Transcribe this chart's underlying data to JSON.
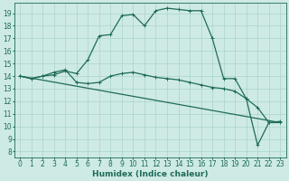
{
  "bg_color": "#ceeae4",
  "grid_color": "#aad4cc",
  "line_color": "#1e6b5a",
  "xlabel": "Humidex (Indice chaleur)",
  "ylabel_ticks": [
    8,
    9,
    10,
    11,
    12,
    13,
    14,
    15,
    16,
    17,
    18,
    19
  ],
  "xticks": [
    0,
    1,
    2,
    3,
    4,
    5,
    6,
    7,
    8,
    9,
    10,
    11,
    12,
    13,
    14,
    15,
    16,
    17,
    18,
    19,
    20,
    21,
    22,
    23
  ],
  "ylim": [
    7.5,
    19.8
  ],
  "xlim": [
    -0.5,
    23.5
  ],
  "line1_x": [
    0,
    1,
    2,
    3,
    4,
    5,
    6,
    7,
    8,
    9,
    10,
    11,
    12,
    13,
    14,
    15,
    16,
    17,
    18,
    19,
    20,
    21,
    22,
    23
  ],
  "line1_y": [
    14.0,
    13.8,
    14.0,
    14.1,
    14.4,
    14.2,
    15.3,
    17.2,
    17.3,
    18.8,
    18.9,
    18.0,
    19.2,
    19.4,
    19.3,
    19.2,
    19.2,
    17.0,
    13.8,
    13.8,
    12.2,
    8.5,
    10.3,
    10.4
  ],
  "line2_x": [
    0,
    1,
    2,
    3,
    4,
    5,
    6,
    7,
    8,
    9,
    10,
    11,
    12,
    13,
    14,
    15,
    16,
    17,
    18,
    19,
    20,
    21,
    22,
    23
  ],
  "line2_y": [
    14.0,
    13.8,
    14.0,
    14.3,
    14.5,
    13.5,
    13.4,
    13.5,
    14.0,
    14.2,
    14.3,
    14.1,
    13.9,
    13.8,
    13.7,
    13.5,
    13.3,
    13.1,
    13.0,
    12.8,
    12.2,
    11.5,
    10.3,
    10.3
  ],
  "line3_x": [
    0,
    23
  ],
  "line3_y": [
    14.0,
    10.3
  ],
  "font_size_label": 6.5,
  "font_size_tick": 5.5,
  "marker_size": 1.8,
  "line_width": 0.9
}
